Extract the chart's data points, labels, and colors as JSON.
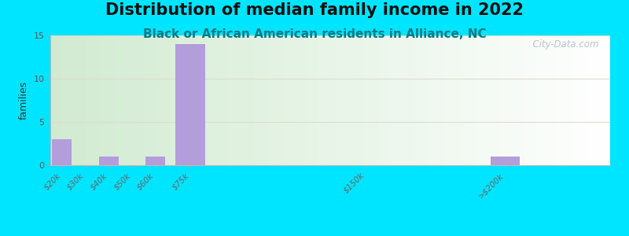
{
  "title": "Distribution of median family income in 2022",
  "subtitle": "Black or African American residents in Alliance, NC",
  "categories": [
    "$20k",
    "$30k",
    "$40k",
    "$50k",
    "$60k",
    "$75k",
    "$150k",
    ">$200k"
  ],
  "x_positions": [
    20,
    30,
    40,
    50,
    60,
    75,
    150,
    210
  ],
  "bar_widths": [
    10,
    10,
    10,
    10,
    10,
    15,
    10,
    15
  ],
  "values": [
    3,
    0,
    1,
    0,
    1,
    14,
    0,
    1
  ],
  "bar_color": "#b39ddb",
  "background_outer": "#00e5ff",
  "ylabel": "families",
  "ylim": [
    0,
    15
  ],
  "yticks": [
    0,
    5,
    10,
    15
  ],
  "title_fontsize": 15,
  "subtitle_fontsize": 11,
  "watermark": "  City-Data.com"
}
